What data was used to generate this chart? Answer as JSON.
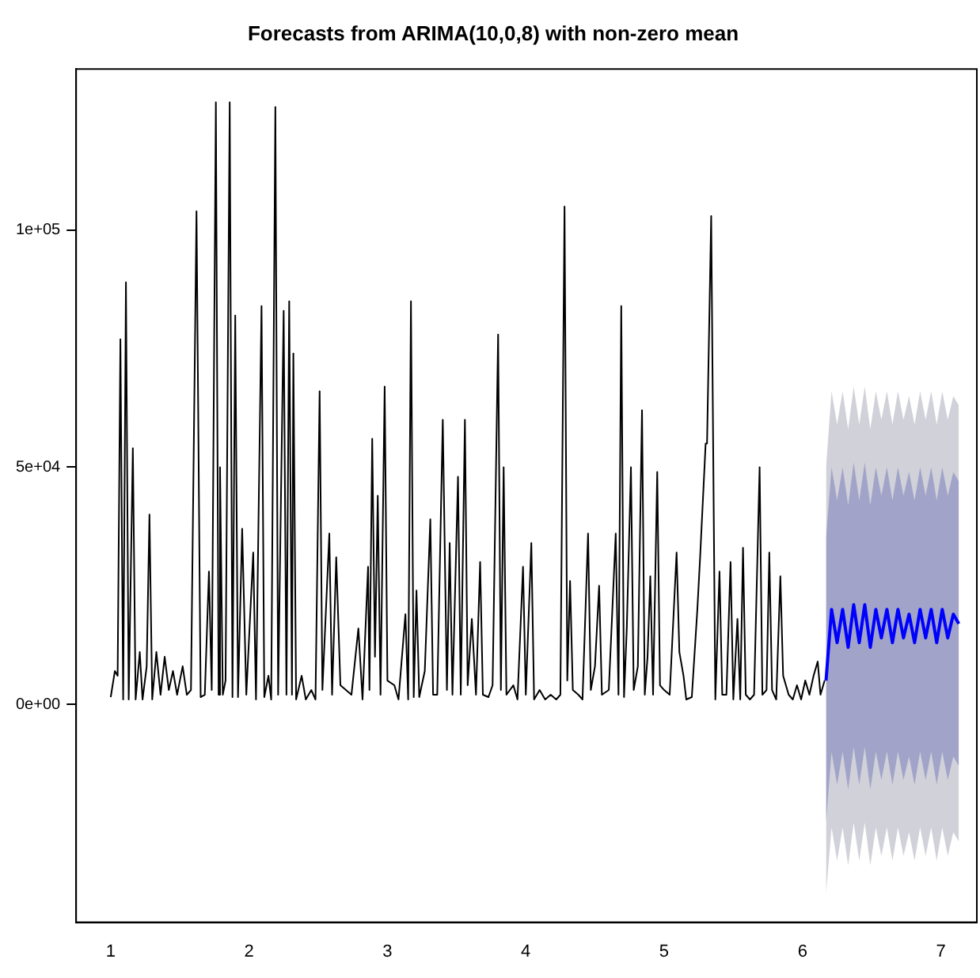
{
  "chart_data": {
    "type": "line",
    "title": "Forecasts from ARIMA(10,0,8) with non-zero mean",
    "xlim": [
      0.75,
      7.26
    ],
    "xticks": [
      1,
      2,
      3,
      4,
      5,
      6,
      7
    ],
    "ylim": [
      -46000,
      134000
    ],
    "yticks": [
      {
        "value": 0,
        "label": "0e+00"
      },
      {
        "value": 50000,
        "label": "5e+04"
      },
      {
        "value": 100000,
        "label": "1e+05"
      }
    ],
    "grid": false,
    "legend": false,
    "marker": "none",
    "line_style": "solid",
    "series": [
      {
        "color": "#000000",
        "x": [
          1.0,
          1.03,
          1.05,
          1.07,
          1.09,
          1.11,
          1.13,
          1.16,
          1.18,
          1.21,
          1.23,
          1.26,
          1.28,
          1.3,
          1.33,
          1.36,
          1.39,
          1.42,
          1.45,
          1.48,
          1.52,
          1.55,
          1.58,
          1.62,
          1.65,
          1.68,
          1.71,
          1.73,
          1.76,
          1.78,
          1.79,
          1.81,
          1.83,
          1.86,
          1.88,
          1.9,
          1.92,
          1.95,
          1.98,
          2.03,
          2.05,
          2.09,
          2.11,
          2.14,
          2.16,
          2.19,
          2.21,
          2.25,
          2.27,
          2.29,
          2.31,
          2.32,
          2.34,
          2.38,
          2.41,
          2.45,
          2.48,
          2.51,
          2.53,
          2.58,
          2.6,
          2.63,
          2.66,
          2.7,
          2.74,
          2.79,
          2.82,
          2.86,
          2.87,
          2.89,
          2.91,
          2.93,
          2.95,
          2.98,
          3.0,
          3.05,
          3.08,
          3.13,
          3.15,
          3.17,
          3.19,
          3.21,
          3.23,
          3.27,
          3.31,
          3.33,
          3.36,
          3.4,
          3.43,
          3.45,
          3.47,
          3.51,
          3.53,
          3.56,
          3.58,
          3.61,
          3.64,
          3.67,
          3.69,
          3.73,
          3.76,
          3.8,
          3.82,
          3.84,
          3.86,
          3.91,
          3.94,
          3.98,
          4.0,
          4.04,
          4.06,
          4.1,
          4.14,
          4.18,
          4.22,
          4.25,
          4.28,
          4.3,
          4.32,
          4.34,
          4.38,
          4.41,
          4.45,
          4.47,
          4.5,
          4.53,
          4.55,
          4.6,
          4.65,
          4.67,
          4.69,
          4.71,
          4.73,
          4.76,
          4.78,
          4.81,
          4.84,
          4.86,
          4.88,
          4.9,
          4.92,
          4.95,
          4.97,
          5.0,
          5.04,
          5.09,
          5.11,
          5.14,
          5.16,
          5.2,
          5.24,
          5.26,
          5.3,
          5.31,
          5.34,
          5.37,
          5.4,
          5.42,
          5.45,
          5.48,
          5.5,
          5.53,
          5.55,
          5.57,
          5.59,
          5.62,
          5.65,
          5.69,
          5.71,
          5.74,
          5.76,
          5.78,
          5.81,
          5.84,
          5.86,
          5.9,
          5.93,
          5.96,
          5.99,
          6.02,
          6.05,
          6.08,
          6.11,
          6.13,
          6.16
        ],
        "values": [
          1500,
          7000,
          6000,
          77000,
          1000,
          89000,
          1000,
          54000,
          1000,
          11000,
          1000,
          8000,
          40000,
          1000,
          11000,
          2000,
          10000,
          3000,
          7000,
          2000,
          8000,
          2000,
          3000,
          104000,
          1500,
          2000,
          28000,
          3000,
          127000,
          2000,
          50000,
          2000,
          5000,
          127000,
          1500,
          82000,
          1500,
          37000,
          2000,
          32000,
          1000,
          84000,
          1500,
          6000,
          1000,
          126000,
          2000,
          83000,
          2000,
          85000,
          2000,
          74000,
          1000,
          6000,
          1000,
          3000,
          1000,
          66000,
          3000,
          36000,
          2000,
          31000,
          4000,
          3000,
          2000,
          16000,
          1000,
          29000,
          3000,
          56000,
          10000,
          44000,
          2000,
          67000,
          5000,
          4000,
          1000,
          19000,
          1000,
          85000,
          1500,
          24000,
          1500,
          7000,
          39000,
          2000,
          2000,
          60000,
          3000,
          34000,
          2000,
          48000,
          2000,
          60000,
          4000,
          18000,
          2000,
          30000,
          2000,
          1500,
          4000,
          78000,
          3000,
          50000,
          2000,
          4000,
          1000,
          29000,
          2000,
          34000,
          1000,
          3000,
          1000,
          2000,
          1000,
          2000,
          105000,
          5000,
          26000,
          3000,
          2000,
          1000,
          36000,
          3000,
          8000,
          25000,
          2000,
          3000,
          36000,
          2000,
          84000,
          1500,
          16000,
          50000,
          3000,
          8000,
          62000,
          2000,
          10000,
          27000,
          2000,
          49000,
          4000,
          3000,
          2000,
          32000,
          11000,
          6000,
          1000,
          1500,
          20000,
          31000,
          55000,
          55000,
          103000,
          1000,
          28000,
          2000,
          2000,
          30000,
          1000,
          18000,
          1000,
          33000,
          2000,
          1000,
          2000,
          50000,
          2000,
          3000,
          32000,
          3000,
          1000,
          27000,
          6000,
          2000,
          1000,
          4000,
          1000,
          5000,
          2000,
          6000,
          9000,
          2000,
          5000
        ]
      },
      {
        "color": "#d1d1d9",
        "x": [
          6.17,
          6.21,
          6.25,
          6.29,
          6.33,
          6.37,
          6.41,
          6.45,
          6.49,
          6.53,
          6.57,
          6.61,
          6.65,
          6.69,
          6.73,
          6.77,
          6.81,
          6.85,
          6.89,
          6.93,
          6.97,
          7.01,
          7.05,
          7.09,
          7.13
        ],
        "values": [
          null,
          null,
          null,
          null,
          null,
          null,
          null,
          null,
          null,
          null,
          null,
          null,
          null,
          null,
          null,
          null,
          null,
          null,
          null,
          null,
          null,
          null,
          null,
          null,
          null
        ],
        "lower": [
          -40000,
          -26000,
          -33000,
          -26000,
          -34000,
          -25000,
          -33000,
          -25000,
          -34000,
          -26000,
          -32000,
          -26000,
          -33000,
          -26000,
          -32000,
          -27000,
          -33000,
          -26000,
          -32000,
          -26000,
          -33000,
          -26000,
          -32000,
          -27000,
          -29000
        ],
        "upper": [
          50000,
          66000,
          59000,
          66000,
          58000,
          67000,
          59000,
          67000,
          58000,
          66000,
          60000,
          66000,
          59000,
          66000,
          60000,
          65000,
          59000,
          66000,
          60000,
          66000,
          59000,
          66000,
          60000,
          65000,
          63000
        ]
      },
      {
        "color": "#a1a4c8",
        "x": [
          6.17,
          6.21,
          6.25,
          6.29,
          6.33,
          6.37,
          6.41,
          6.45,
          6.49,
          6.53,
          6.57,
          6.61,
          6.65,
          6.69,
          6.73,
          6.77,
          6.81,
          6.85,
          6.89,
          6.93,
          6.97,
          7.01,
          7.05,
          7.09,
          7.13
        ],
        "values": [
          null,
          null,
          null,
          null,
          null,
          null,
          null,
          null,
          null,
          null,
          null,
          null,
          null,
          null,
          null,
          null,
          null,
          null,
          null,
          null,
          null,
          null,
          null,
          null,
          null
        ],
        "lower": [
          -25000,
          -10000,
          -17000,
          -10000,
          -18000,
          -9000,
          -17000,
          -9000,
          -18000,
          -10000,
          -16000,
          -10000,
          -17000,
          -10000,
          -16000,
          -11000,
          -17000,
          -10000,
          -16000,
          -10000,
          -17000,
          -10000,
          -16000,
          -11000,
          -13000
        ],
        "upper": [
          35000,
          50000,
          43000,
          50000,
          42000,
          51000,
          43000,
          51000,
          42000,
          50000,
          44000,
          50000,
          43000,
          50000,
          44000,
          49000,
          43000,
          50000,
          44000,
          50000,
          43000,
          50000,
          44000,
          49000,
          47000
        ]
      },
      {
        "color": "#0000ff",
        "x": [
          6.17,
          6.21,
          6.25,
          6.29,
          6.33,
          6.37,
          6.41,
          6.45,
          6.49,
          6.53,
          6.57,
          6.61,
          6.65,
          6.69,
          6.73,
          6.77,
          6.81,
          6.85,
          6.89,
          6.93,
          6.97,
          7.01,
          7.05,
          7.09,
          7.13
        ],
        "values": [
          5000,
          20000,
          13000,
          20000,
          12000,
          21000,
          13000,
          21000,
          12000,
          20000,
          14000,
          20000,
          13000,
          20000,
          14000,
          19000,
          13000,
          20000,
          14000,
          20000,
          13000,
          20000,
          14000,
          19000,
          17000
        ]
      }
    ]
  }
}
